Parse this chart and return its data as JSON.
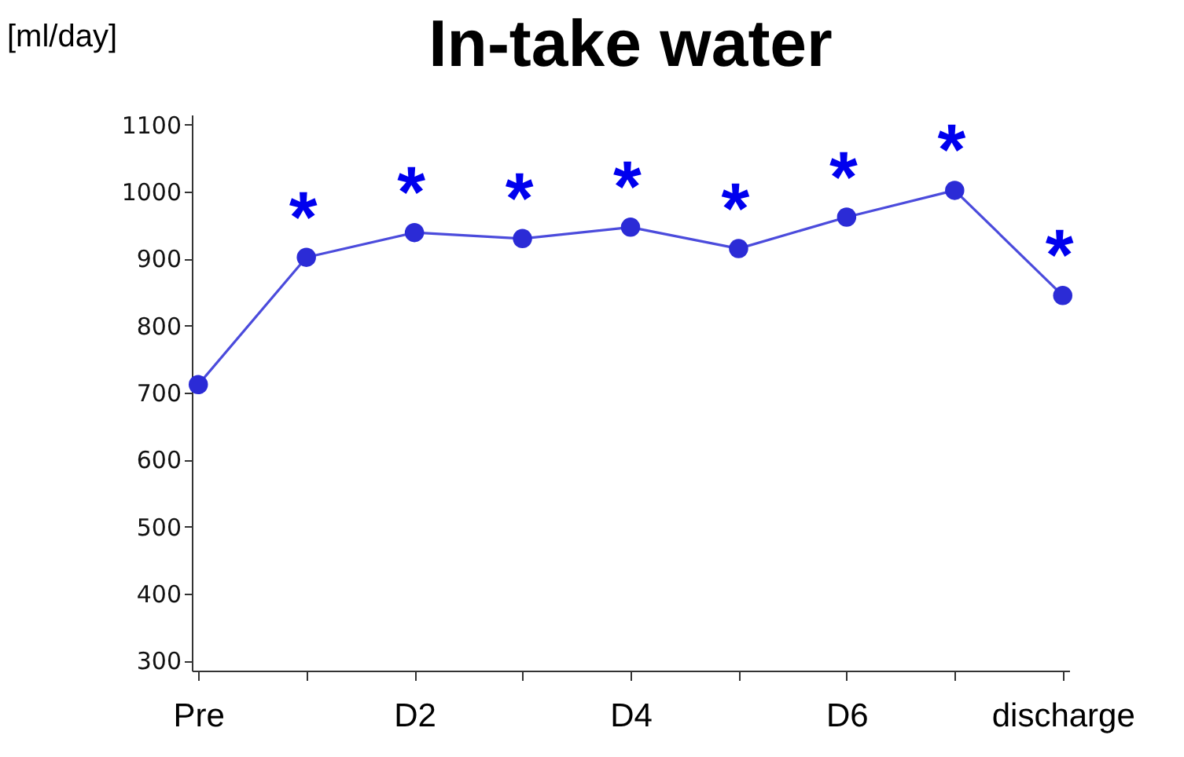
{
  "chart_data": {
    "type": "line",
    "title": "In-take water",
    "ylabel": "[ml/day]",
    "categories": [
      "Pre",
      null,
      "D2",
      null,
      "D4",
      null,
      "D6",
      null,
      "discharge"
    ],
    "series": [
      {
        "color": "#2b2bd6",
        "values": [
          712,
          902,
          939,
          930,
          947,
          915,
          962,
          1002,
          845
        ],
        "value_labels": [
          null,
          "*",
          "*",
          "*",
          "*",
          "*",
          "*",
          "*",
          "*"
        ]
      }
    ],
    "ylim": [
      285,
      1115
    ],
    "yticks": [
      300,
      400,
      500,
      600,
      700,
      800,
      900,
      1000,
      1100
    ],
    "marker": "circle",
    "line_style": "solid",
    "grid": false
  }
}
